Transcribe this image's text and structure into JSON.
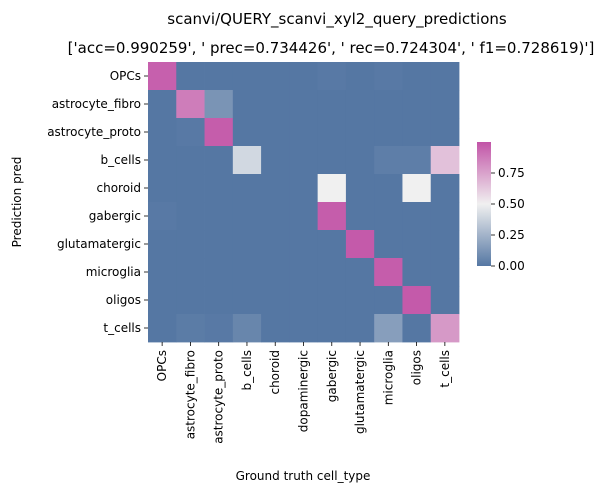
{
  "chart_data": {
    "type": "heatmap",
    "title": "scanvi/QUERY_scanvi_xyl2_query_predictions",
    "subtitle": "['acc=0.990259', '  prec=0.734426', ' rec=0.724304', ' f1=0.728619)']",
    "xlabel": "Ground truth cell_type",
    "ylabel": "Prediction pred",
    "x_categories": [
      "OPCs",
      "astrocyte_fibro",
      "astrocyte_proto",
      "b_cells",
      "choroid",
      "dopaminergic",
      "gabergic",
      "glutamatergic",
      "microglia",
      "oligos",
      "t_cells"
    ],
    "y_categories": [
      "OPCs",
      "astrocyte_fibro",
      "astrocyte_proto",
      "b_cells",
      "choroid",
      "gabergic",
      "glutamatergic",
      "microglia",
      "oligos",
      "t_cells"
    ],
    "values": [
      [
        0.96,
        0.0,
        0.0,
        0.0,
        0.0,
        0.0,
        0.01,
        0.0,
        0.01,
        0.0,
        0.0
      ],
      [
        0.0,
        0.87,
        0.12,
        0.0,
        0.0,
        0.0,
        0.0,
        0.0,
        0.0,
        0.0,
        0.0
      ],
      [
        0.0,
        0.01,
        0.97,
        0.0,
        0.0,
        0.0,
        0.0,
        0.0,
        0.0,
        0.0,
        0.0
      ],
      [
        0.0,
        0.0,
        0.0,
        0.4,
        0.0,
        0.0,
        0.0,
        0.0,
        0.03,
        0.03,
        0.65
      ],
      [
        0.0,
        0.0,
        0.0,
        0.0,
        0.0,
        0.0,
        0.5,
        0.0,
        0.0,
        0.5,
        0.0
      ],
      [
        0.01,
        0.0,
        0.0,
        0.0,
        0.0,
        0.0,
        0.97,
        0.0,
        0.0,
        0.0,
        0.0
      ],
      [
        0.0,
        0.0,
        0.0,
        0.0,
        0.0,
        0.0,
        0.0,
        0.98,
        0.0,
        0.0,
        0.0
      ],
      [
        0.0,
        0.0,
        0.0,
        0.0,
        0.0,
        0.0,
        0.0,
        0.0,
        0.97,
        0.0,
        0.0
      ],
      [
        0.0,
        0.0,
        0.0,
        0.0,
        0.0,
        0.0,
        0.0,
        0.0,
        0.0,
        0.98,
        0.0
      ],
      [
        0.0,
        0.02,
        0.01,
        0.06,
        0.0,
        0.0,
        0.0,
        0.0,
        0.16,
        0.0,
        0.78
      ]
    ],
    "vmin": 0.0,
    "vmax": 1.0,
    "colorbar_ticks": [
      0.0,
      0.25,
      0.5,
      0.75
    ],
    "colorbar_tick_labels": [
      "0.00",
      "0.25",
      "0.50",
      "0.75"
    ],
    "colormap": [
      "#5577a3",
      "#f0f0f0",
      "#c254a7"
    ]
  }
}
